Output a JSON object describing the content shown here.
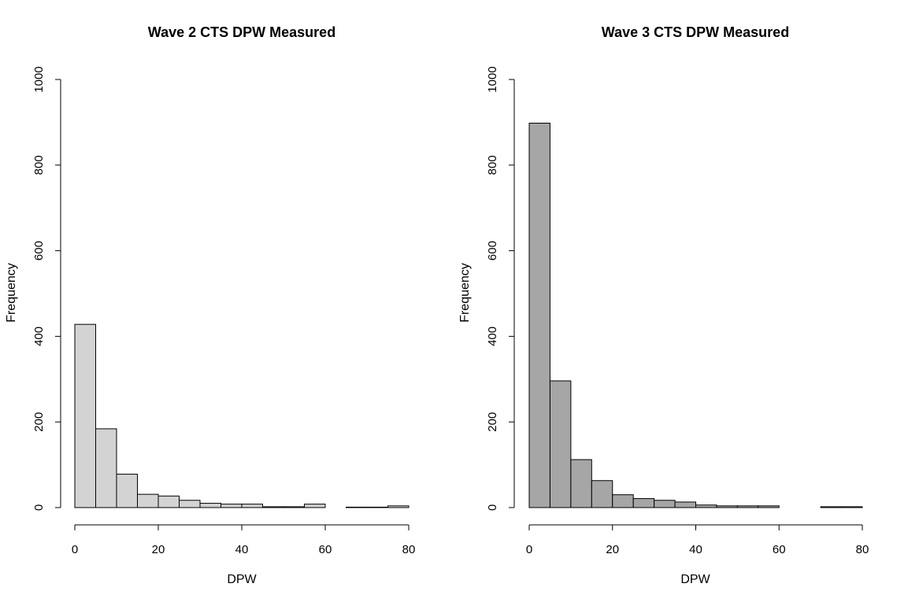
{
  "chart_data": [
    {
      "type": "bar",
      "title": "Wave 2 CTS DPW Measured",
      "xlabel": "DPW",
      "ylabel": "Frequency",
      "xlim": [
        0,
        80
      ],
      "ylim": [
        0,
        1000
      ],
      "xticks": [
        "0",
        "20",
        "40",
        "60",
        "80"
      ],
      "yticks": [
        "0",
        "200",
        "400",
        "600",
        "800",
        "1000"
      ],
      "bin_width": 5,
      "bin_starts": [
        0,
        5,
        10,
        15,
        20,
        25,
        30,
        35,
        40,
        45,
        50,
        55,
        60,
        65,
        70,
        75
      ],
      "values": [
        428,
        184,
        78,
        31,
        27,
        17,
        10,
        8,
        8,
        2,
        2,
        8,
        0,
        1,
        1,
        4
      ],
      "fill": "#d3d3d3",
      "grid": false
    },
    {
      "type": "bar",
      "title": "Wave 3 CTS DPW Measured",
      "xlabel": "DPW",
      "ylabel": "Frequency",
      "xlim": [
        0,
        80
      ],
      "ylim": [
        0,
        1000
      ],
      "xticks": [
        "0",
        "20",
        "40",
        "60",
        "80"
      ],
      "yticks": [
        "0",
        "200",
        "400",
        "600",
        "800",
        "1000"
      ],
      "bin_width": 5,
      "bin_starts": [
        0,
        5,
        10,
        15,
        20,
        25,
        30,
        35,
        40,
        45,
        50,
        55,
        60,
        65,
        70,
        75
      ],
      "values": [
        898,
        296,
        112,
        63,
        30,
        21,
        17,
        13,
        6,
        4,
        4,
        4,
        0,
        0,
        2,
        2
      ],
      "fill": "#a6a6a6",
      "grid": false
    }
  ]
}
